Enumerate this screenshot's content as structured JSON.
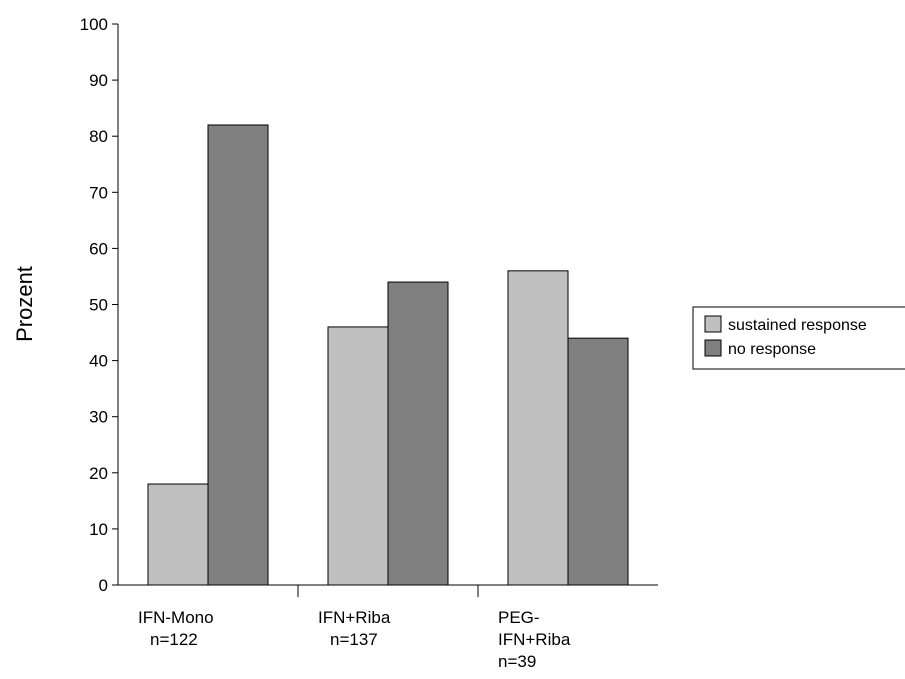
{
  "chart_data": {
    "type": "bar",
    "title": "",
    "xlabel": "",
    "ylabel": "Prozent",
    "ylim": [
      0,
      100
    ],
    "yticks": [
      0,
      10,
      20,
      30,
      40,
      50,
      60,
      70,
      80,
      90,
      100
    ],
    "grid": false,
    "legend_position": "right",
    "categories": [
      [
        "IFN-Mono",
        "n=122"
      ],
      [
        "IFN+Riba",
        "n=137"
      ],
      [
        "PEG-",
        "IFN+Riba",
        "n=39"
      ]
    ],
    "series": [
      {
        "name": "sustained response",
        "color": "#c0c0c0",
        "values": [
          18,
          46,
          56
        ]
      },
      {
        "name": "no response",
        "color": "#808080",
        "values": [
          82,
          54,
          44
        ]
      }
    ]
  }
}
